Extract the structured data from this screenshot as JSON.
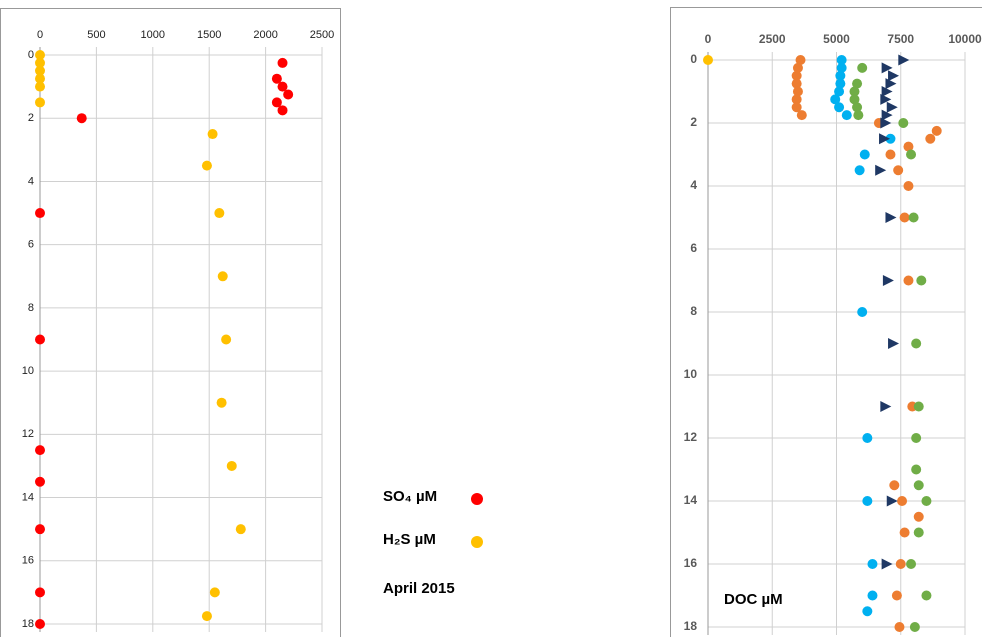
{
  "chart_data": [
    {
      "type": "scatter",
      "invert_y": true,
      "x_axis": "top",
      "grid": true,
      "legend": "right",
      "xlim": [
        0,
        2500
      ],
      "xticks": [
        0,
        500,
        1000,
        1500,
        2000,
        2500
      ],
      "ylim": [
        0,
        18
      ],
      "yticks": [
        0,
        2,
        4,
        6,
        8,
        10,
        12,
        14,
        16,
        18
      ],
      "annotation": "April 2015",
      "series": [
        {
          "name": "SO₄  µM",
          "color": "#ff0000",
          "marker": "circle",
          "x": [
            2150,
            2100,
            2150,
            2200,
            2100,
            2150,
            370,
            0,
            0,
            0,
            0,
            0,
            0,
            0
          ],
          "values": [
            0.25,
            0.75,
            1,
            1.25,
            1.5,
            1.75,
            2,
            5,
            9,
            12.5,
            13.5,
            15,
            17,
            18
          ]
        },
        {
          "name": "H₂S  µM",
          "color": "#ffc000",
          "marker": "circle",
          "x": [
            0,
            0,
            0,
            0,
            0,
            0,
            1530,
            1480,
            1590,
            1620,
            1650,
            1610,
            1700,
            1780,
            1550,
            1480
          ],
          "values": [
            0,
            0.25,
            0.5,
            0.75,
            1,
            1.5,
            2.5,
            3.5,
            5,
            7,
            9,
            11,
            13,
            15,
            17,
            17.75
          ]
        }
      ]
    },
    {
      "type": "scatter",
      "invert_y": true,
      "x_axis": "top",
      "grid": true,
      "xlim": [
        0,
        10000
      ],
      "xticks": [
        0,
        2500,
        5000,
        7500,
        10000
      ],
      "ylim": [
        0,
        18
      ],
      "yticks": [
        0,
        2,
        4,
        6,
        8,
        10,
        12,
        14,
        16,
        18
      ],
      "annotation": "DOC µM",
      "series": [
        {
          "color": "#ffc000",
          "marker": "circle",
          "x": [
            0
          ],
          "values": [
            0
          ]
        },
        {
          "color": "#ed7d31",
          "marker": "circle",
          "x": [
            3600,
            3500,
            3450,
            3450,
            3500,
            3450,
            3450,
            3650,
            6650,
            8900,
            8650,
            7800,
            7100,
            7400,
            7800,
            7650,
            7800,
            7950,
            7250,
            7550,
            8200,
            7650,
            7500,
            7350,
            7450
          ],
          "values": [
            0,
            0.25,
            0.5,
            0.75,
            1,
            1.25,
            1.5,
            1.75,
            2,
            2.25,
            2.5,
            2.75,
            3,
            3.5,
            4,
            5,
            7,
            11,
            13.5,
            14,
            14.5,
            15,
            16,
            17,
            18
          ]
        },
        {
          "color": "#00b0f0",
          "marker": "circle",
          "x": [
            5200,
            5200,
            5150,
            5150,
            5100,
            4950,
            5100,
            5400,
            7100,
            6100,
            5900,
            6000,
            6200,
            6200,
            6400,
            6400,
            6200
          ],
          "values": [
            0,
            0.25,
            0.5,
            0.75,
            1,
            1.25,
            1.5,
            1.75,
            2.5,
            3,
            3.5,
            8,
            12,
            14,
            16,
            17,
            17.5
          ]
        },
        {
          "color": "#70ad47",
          "marker": "circle",
          "x": [
            6000,
            5800,
            5700,
            5700,
            5800,
            5850,
            7600,
            7900,
            8000,
            8300,
            8100,
            8200,
            8100,
            8100,
            8200,
            8500,
            8200,
            7900,
            8500,
            8050
          ],
          "values": [
            0.25,
            0.75,
            1,
            1.25,
            1.5,
            1.75,
            2,
            3,
            5,
            7,
            9,
            11,
            12,
            13,
            13.5,
            14,
            15,
            16,
            17,
            18
          ]
        },
        {
          "color": "#1f3864",
          "marker": "triangle",
          "x": [
            7600,
            6950,
            7200,
            7100,
            6950,
            6900,
            7150,
            6950,
            6900,
            6850,
            6700,
            7100,
            7000,
            7200,
            6900,
            7150,
            6950
          ],
          "values": [
            0,
            0.25,
            0.5,
            0.75,
            1,
            1.25,
            1.5,
            1.75,
            2,
            2.5,
            3.5,
            5,
            7,
            9,
            11,
            14,
            16
          ]
        }
      ]
    }
  ]
}
